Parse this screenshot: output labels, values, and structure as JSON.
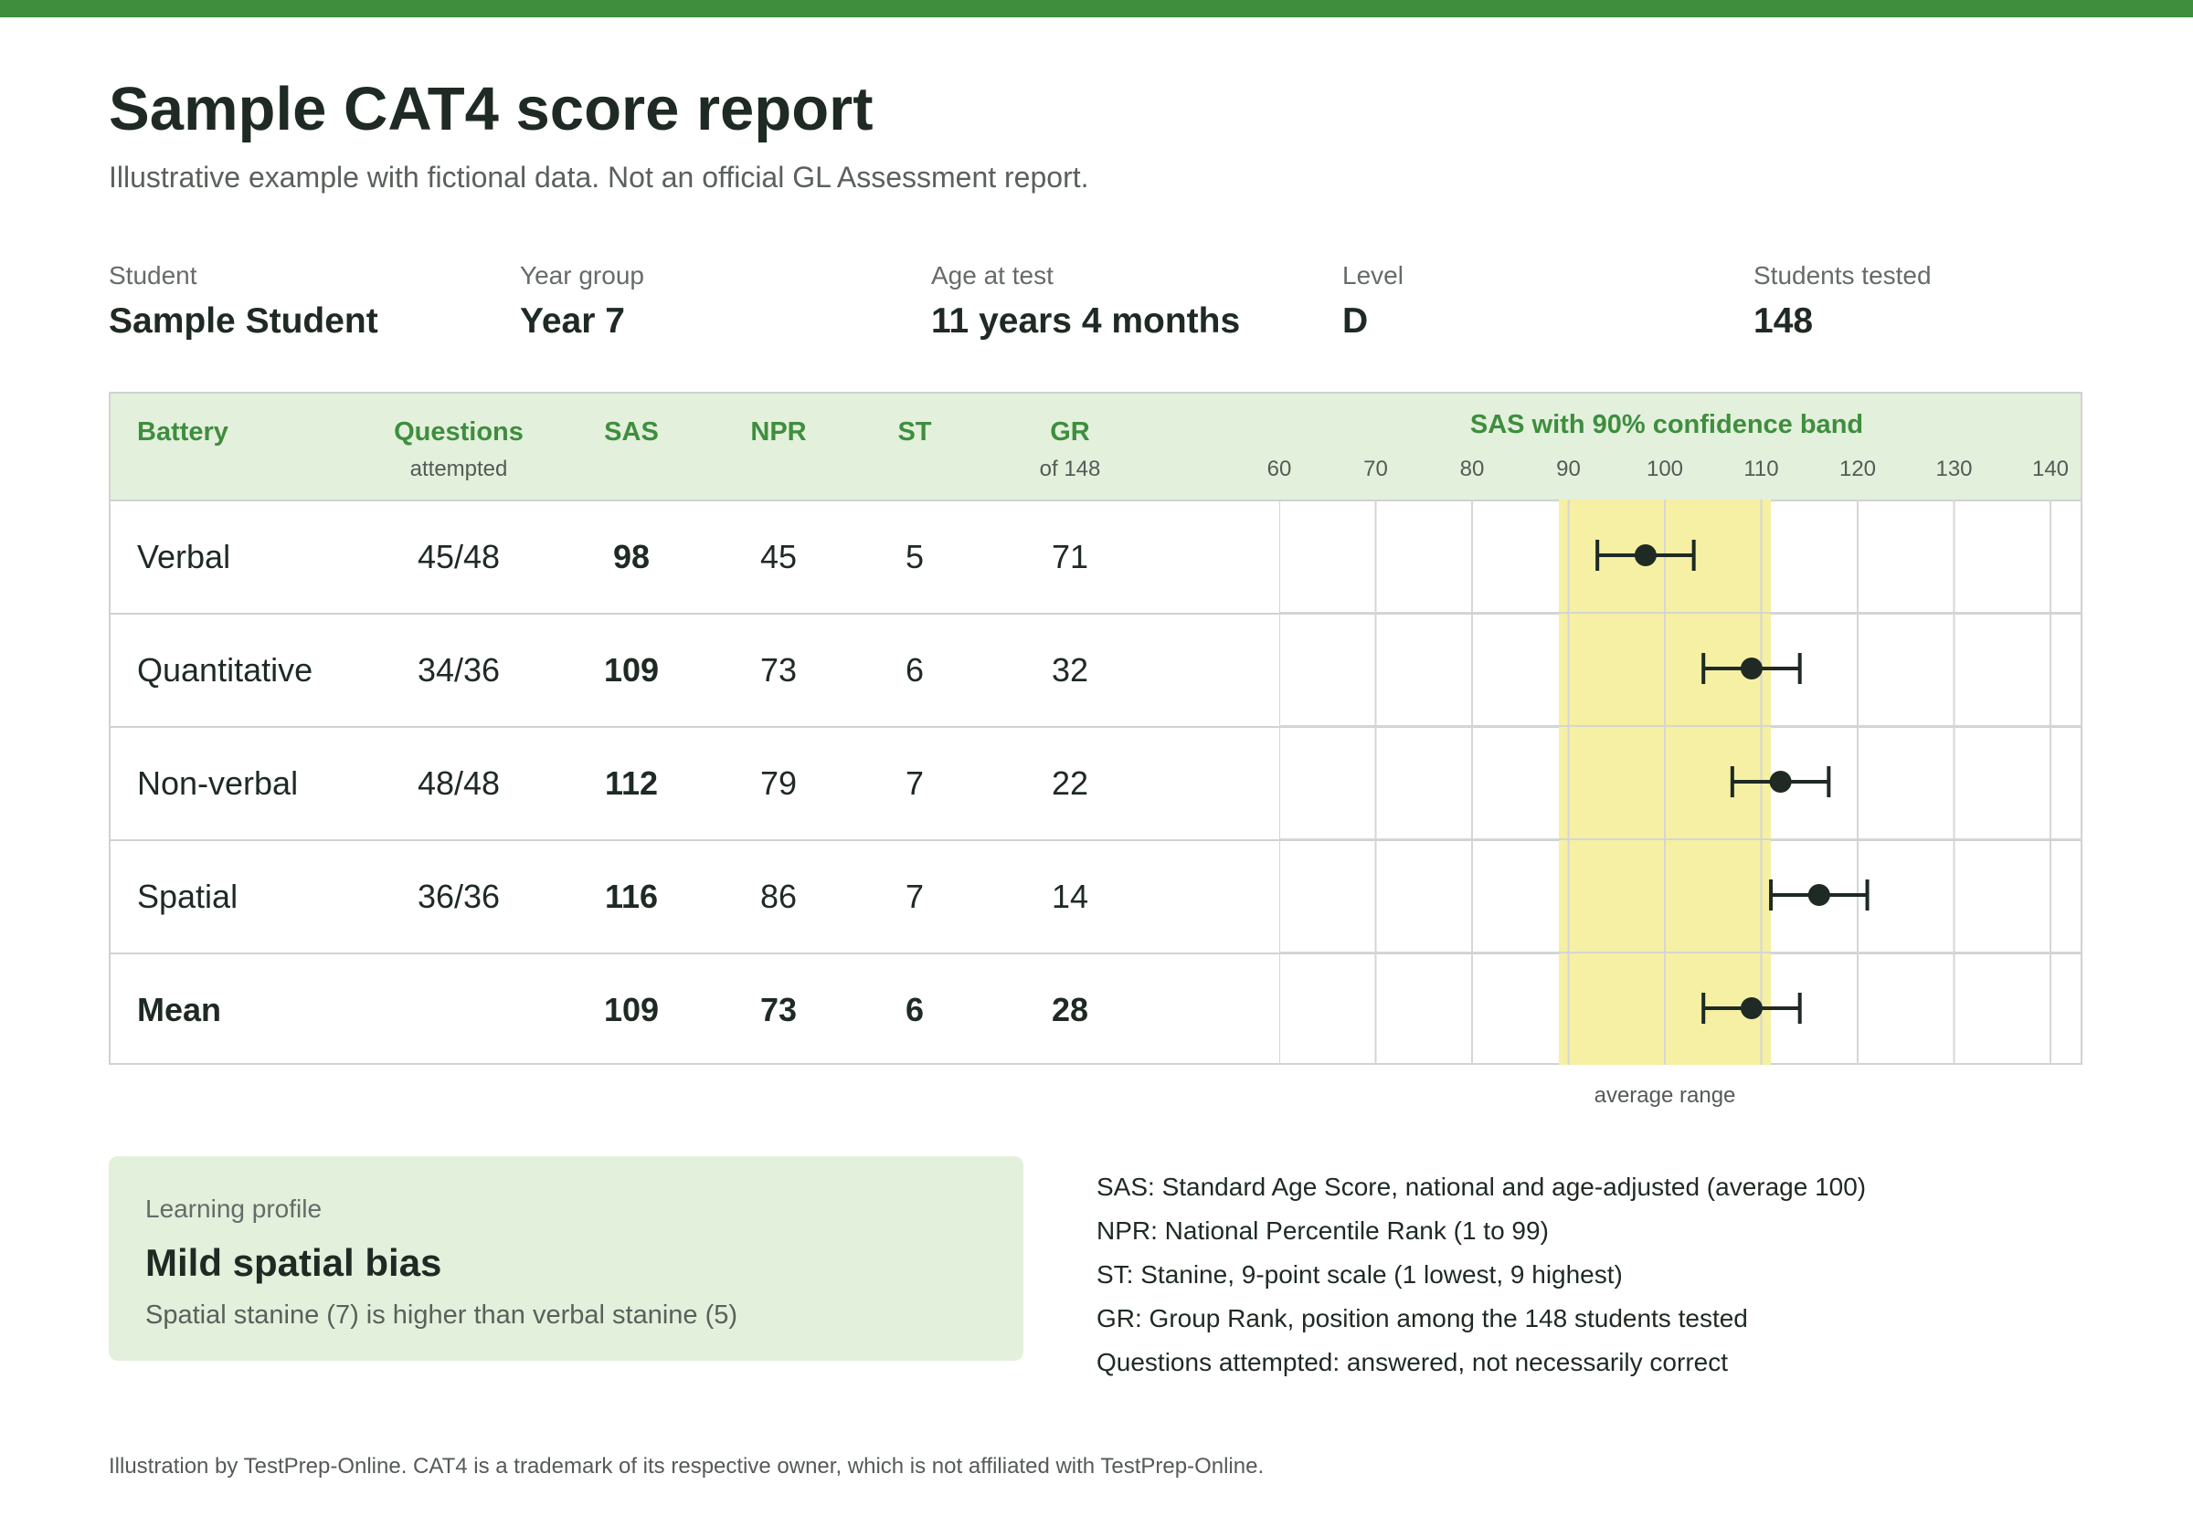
{
  "title": "Sample CAT4 score report",
  "subtitle": "Illustrative example with fictional data. Not an official GL Assessment report.",
  "meta": [
    {
      "label": "Student",
      "value": "Sample Student"
    },
    {
      "label": "Year group",
      "value": "Year 7"
    },
    {
      "label": "Age at test",
      "value": "11 years 4 months"
    },
    {
      "label": "Level",
      "value": "D"
    },
    {
      "label": "Students tested",
      "value": "148"
    }
  ],
  "table": {
    "headers": {
      "battery": "Battery",
      "questions": "Questions",
      "questions_sub": "attempted",
      "sas": "SAS",
      "npr": "NPR",
      "st": "ST",
      "gr": "GR",
      "gr_sub": "of 148",
      "chart": "SAS with 90% confidence band"
    },
    "rows": [
      {
        "battery": "Verbal",
        "questions": "45/48",
        "sas": "98",
        "npr": "45",
        "st": "5",
        "gr": "71"
      },
      {
        "battery": "Quantitative",
        "questions": "34/36",
        "sas": "109",
        "npr": "73",
        "st": "6",
        "gr": "32"
      },
      {
        "battery": "Non-verbal",
        "questions": "48/48",
        "sas": "112",
        "npr": "79",
        "st": "7",
        "gr": "22"
      },
      {
        "battery": "Spatial",
        "questions": "36/36",
        "sas": "116",
        "npr": "86",
        "st": "7",
        "gr": "14"
      },
      {
        "battery": "Mean",
        "questions": "",
        "sas": "109",
        "npr": "73",
        "st": "6",
        "gr": "28"
      }
    ]
  },
  "chart_data": {
    "type": "scatter",
    "title": "SAS with 90% confidence band",
    "xlim": [
      60,
      140
    ],
    "ticks": [
      "60",
      "70",
      "80",
      "90",
      "100",
      "110",
      "120",
      "130",
      "140"
    ],
    "average_range": [
      89,
      111
    ],
    "average_range_label": "average range",
    "categories": [
      "Verbal",
      "Quantitative",
      "Non-verbal",
      "Spatial",
      "Mean"
    ],
    "points": [
      {
        "name": "Verbal",
        "sas": 98,
        "low": 93,
        "high": 103
      },
      {
        "name": "Quantitative",
        "sas": 109,
        "low": 104,
        "high": 114
      },
      {
        "name": "Non-verbal",
        "sas": 112,
        "low": 107,
        "high": 117
      },
      {
        "name": "Spatial",
        "sas": 116,
        "low": 111,
        "high": 121
      },
      {
        "name": "Mean",
        "sas": 109,
        "low": 104,
        "high": 114
      }
    ],
    "colors": {
      "band": "#f5f0a3",
      "point": "#1e2a23",
      "grid": "#d4d6d4"
    }
  },
  "profile": {
    "label": "Learning profile",
    "title": "Mild spatial bias",
    "description": "Spatial stanine (7) is higher than verbal stanine (5)"
  },
  "legend": [
    "SAS: Standard Age Score, national and age-adjusted (average 100)",
    "NPR: National Percentile Rank (1 to 99)",
    "ST: Stanine, 9-point scale (1 lowest, 9 highest)",
    "GR: Group Rank, position among the 148 students tested",
    "Questions attempted: answered, not necessarily correct"
  ],
  "footer": "Illustration by TestPrep-Online. CAT4 is a trademark of its respective owner, which is not affiliated with TestPrep-Online.",
  "colors": {
    "accent": "#3e8e3e",
    "header_bg": "#e3f0dc",
    "text": "#1e2a23"
  }
}
